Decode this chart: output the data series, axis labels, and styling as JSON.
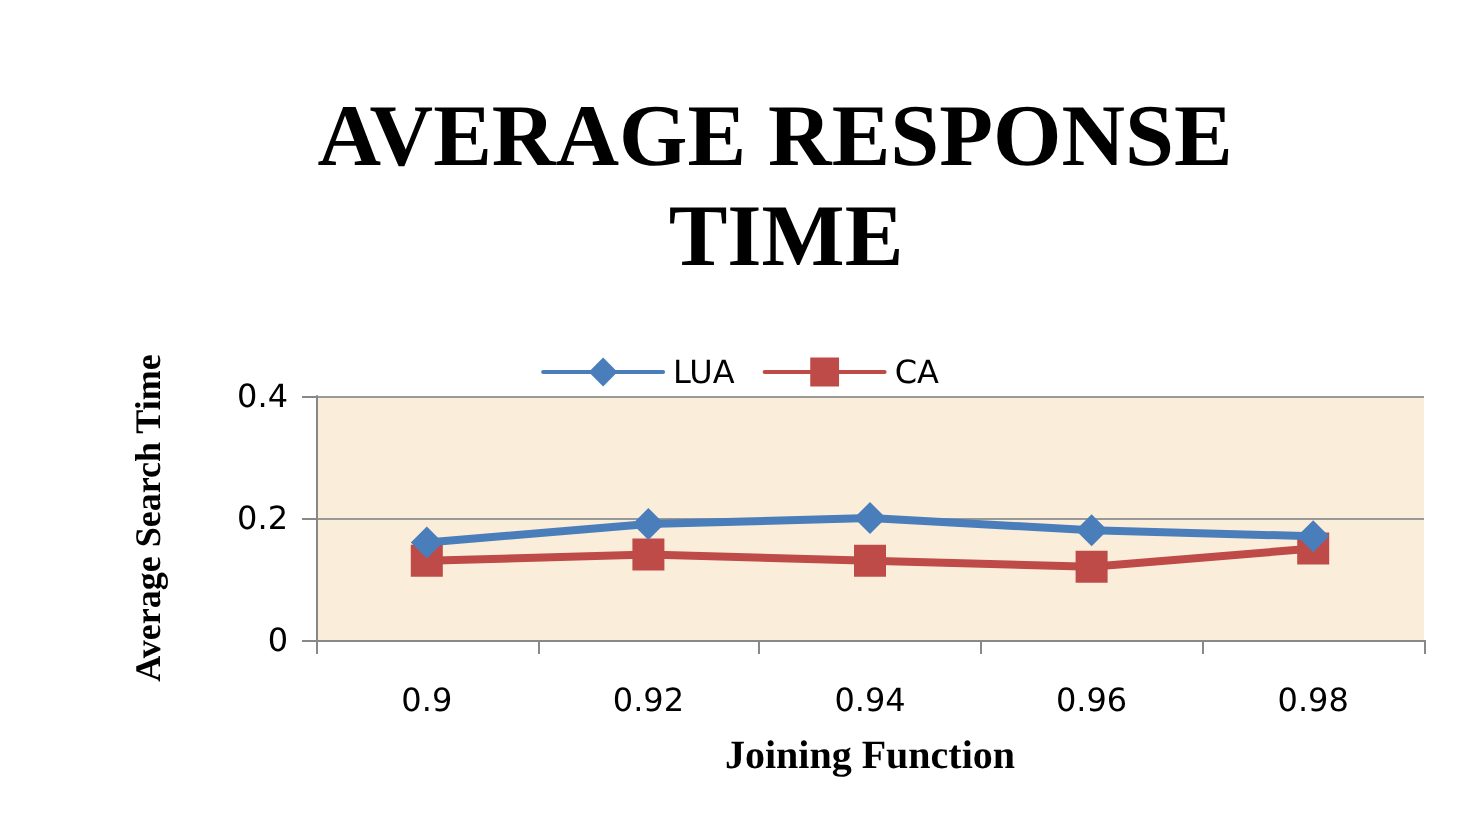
{
  "chart_data": {
    "type": "line",
    "title": "AVERAGE RESPONSE TIME",
    "xlabel": "Joining Function",
    "ylabel": "Average Search Time",
    "categories": [
      "0.9",
      "0.92",
      "0.94",
      "0.96",
      "0.98"
    ],
    "series": [
      {
        "name": "LUA",
        "color": "#4a7ebb",
        "marker": "diamond",
        "values": [
          0.16,
          0.19,
          0.2,
          0.18,
          0.17
        ]
      },
      {
        "name": "CA",
        "color": "#be4b48",
        "marker": "square",
        "values": [
          0.13,
          0.14,
          0.13,
          0.12,
          0.15
        ]
      }
    ],
    "ylim": [
      0,
      0.4
    ],
    "yticks": [
      0,
      0.2,
      0.4
    ],
    "grid": "y",
    "legend": "top"
  }
}
